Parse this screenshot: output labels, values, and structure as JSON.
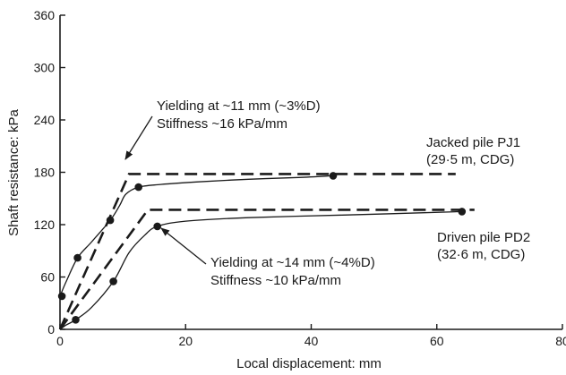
{
  "chart_data": {
    "type": "line",
    "title": "",
    "xlabel": "Local displacement: mm",
    "ylabel": "Shaft resistance: kPa",
    "xlim": [
      0,
      80
    ],
    "ylim": [
      0,
      360
    ],
    "x_ticks": [
      0,
      20,
      40,
      60,
      80
    ],
    "y_ticks": [
      0,
      60,
      120,
      180,
      240,
      300,
      360
    ],
    "grid": false,
    "legend": "none",
    "series": [
      {
        "label": "Jacked pile PJ1",
        "label_detail": "(29·5 m, CDG)",
        "curve": [
          [
            0,
            38
          ],
          [
            1,
            55
          ],
          [
            2.8,
            82
          ],
          [
            5,
            100
          ],
          [
            8,
            125
          ],
          [
            9.5,
            142
          ],
          [
            10.5,
            155
          ],
          [
            12.5,
            163
          ],
          [
            16,
            166
          ],
          [
            22,
            169
          ],
          [
            30,
            172
          ],
          [
            38,
            174
          ],
          [
            43.5,
            176
          ]
        ],
        "points": [
          [
            0.3,
            38
          ],
          [
            2.8,
            82
          ],
          [
            8,
            125
          ],
          [
            12.5,
            163
          ],
          [
            43.5,
            176
          ]
        ],
        "idealized": [
          [
            0,
            0
          ],
          [
            11,
            178
          ],
          [
            63,
            178
          ]
        ],
        "annotation_lines": [
          "Yielding at ~11 mm (~3%D)",
          "Stiffness ~16 kPa/mm"
        ]
      },
      {
        "label": "Driven pile PD2",
        "label_detail": "(32·6 m, CDG)",
        "curve": [
          [
            0,
            0
          ],
          [
            1,
            5
          ],
          [
            2.5,
            11
          ],
          [
            5,
            25
          ],
          [
            8.5,
            55
          ],
          [
            11,
            88
          ],
          [
            13.5,
            108
          ],
          [
            15.5,
            118
          ],
          [
            20,
            124
          ],
          [
            30,
            128
          ],
          [
            45,
            131
          ],
          [
            55,
            133
          ],
          [
            64,
            135
          ]
        ],
        "points": [
          [
            2.5,
            11
          ],
          [
            8.5,
            55
          ],
          [
            15.5,
            118
          ],
          [
            64,
            135
          ]
        ],
        "idealized": [
          [
            0,
            0
          ],
          [
            14,
            137
          ],
          [
            66,
            137
          ]
        ],
        "annotation_lines": [
          "Yielding at ~14 mm (~4%D)",
          "Stiffness ~10 kPa/mm"
        ]
      }
    ]
  }
}
